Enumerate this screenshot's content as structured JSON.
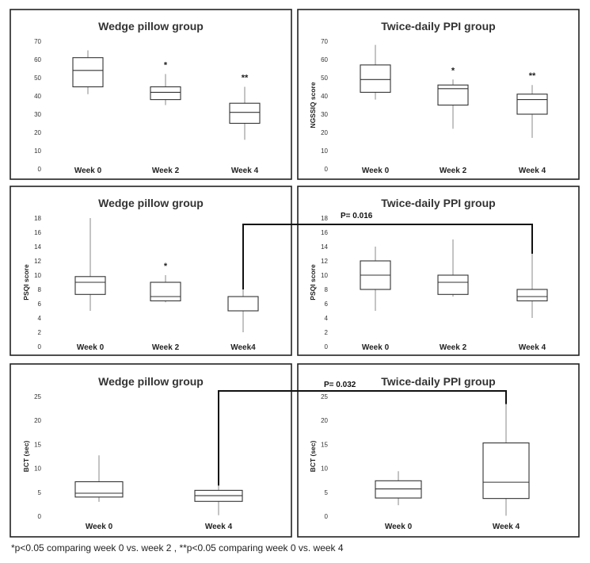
{
  "chart_data": [
    {
      "type": "box",
      "title": "Wedge pillow group",
      "ylabel": "",
      "yticks": [
        0,
        10,
        20,
        30,
        40,
        50,
        60,
        70
      ],
      "ylim": [
        0,
        70
      ],
      "categories": [
        "Week 0",
        "Week 2",
        "Week 4"
      ],
      "boxes": [
        {
          "min": 41,
          "q1": 45,
          "median": 54,
          "q3": 61,
          "max": 65,
          "annotation": ""
        },
        {
          "min": 35,
          "q1": 38,
          "median": 42,
          "q3": 45,
          "max": 52,
          "annotation": "*"
        },
        {
          "min": 16,
          "q1": 25,
          "median": 31,
          "q3": 36,
          "max": 45,
          "annotation": "**"
        }
      ]
    },
    {
      "type": "box",
      "title": "Twice-daily PPI group",
      "ylabel": "NGSSIQ score",
      "yticks": [
        0,
        10,
        20,
        30,
        40,
        50,
        60,
        70
      ],
      "ylim": [
        0,
        70
      ],
      "categories": [
        "Week 0",
        "Week 2",
        "Week 4"
      ],
      "boxes": [
        {
          "min": 38,
          "q1": 42,
          "median": 49,
          "q3": 57,
          "max": 68,
          "annotation": ""
        },
        {
          "min": 22,
          "q1": 35,
          "median": 44,
          "q3": 46,
          "max": 49,
          "annotation": "*"
        },
        {
          "min": 17,
          "q1": 30,
          "median": 38,
          "q3": 41,
          "max": 46,
          "annotation": "**"
        }
      ]
    },
    {
      "type": "box",
      "title": "Wedge pillow group",
      "ylabel": "PSQI score",
      "yticks": [
        0,
        2,
        4,
        6,
        8,
        10,
        12,
        14,
        16,
        18
      ],
      "ylim": [
        0,
        18
      ],
      "categories": [
        "Week 0",
        "Week 2",
        "Week4"
      ],
      "boxes": [
        {
          "min": 5,
          "q1": 7.3,
          "median": 9,
          "q3": 9.8,
          "max": 18,
          "annotation": ""
        },
        {
          "min": 6.2,
          "q1": 6.4,
          "median": 7,
          "q3": 9,
          "max": 10,
          "annotation": "*"
        },
        {
          "min": 2,
          "q1": 5,
          "median": 5,
          "q3": 7,
          "max": 8,
          "annotation": ""
        }
      ]
    },
    {
      "type": "box",
      "title": "Twice-daily PPI group",
      "ylabel": "PSQI score",
      "yticks": [
        0,
        2,
        4,
        6,
        8,
        10,
        12,
        14,
        16,
        18
      ],
      "ylim": [
        0,
        18
      ],
      "categories": [
        "Week 0",
        "Week 2",
        "Week 4"
      ],
      "boxes": [
        {
          "min": 5,
          "q1": 8,
          "median": 10,
          "q3": 12,
          "max": 14,
          "annotation": ""
        },
        {
          "min": 7,
          "q1": 7.3,
          "median": 9,
          "q3": 10,
          "max": 15,
          "annotation": ""
        },
        {
          "min": 4,
          "q1": 6.4,
          "median": 7,
          "q3": 8,
          "max": 13,
          "annotation": ""
        }
      ]
    },
    {
      "type": "box",
      "title": "Wedge pillow group",
      "ylabel": "BCT (sec)",
      "yticks": [
        0,
        5,
        10,
        15,
        20,
        25
      ],
      "ylim": [
        0,
        25
      ],
      "categories": [
        "Week 0",
        "Week 4"
      ],
      "boxes": [
        {
          "min": 3,
          "q1": 4,
          "median": 4.8,
          "q3": 7.2,
          "max": 12.7,
          "annotation": ""
        },
        {
          "min": 0.2,
          "q1": 3.1,
          "median": 4.3,
          "q3": 5.4,
          "max": 6.4,
          "annotation": ""
        }
      ]
    },
    {
      "type": "box",
      "title": "Twice-daily PPI group",
      "ylabel": "BCT (sec)",
      "yticks": [
        0,
        5,
        10,
        15,
        20,
        25
      ],
      "ylim": [
        0,
        25
      ],
      "categories": [
        "Week 0",
        "Week 4"
      ],
      "boxes": [
        {
          "min": 2.3,
          "q1": 3.8,
          "median": 5.7,
          "q3": 7.4,
          "max": 9.4,
          "annotation": ""
        },
        {
          "min": 0.1,
          "q1": 3.7,
          "median": 7.1,
          "q3": 15.3,
          "max": 23.4,
          "annotation": ""
        }
      ]
    }
  ],
  "comparisons": [
    {
      "label": "P= 0.016"
    },
    {
      "label": "P= 0.032"
    }
  ],
  "footnote": "*p<0.05 comparing week 0 vs. week 2 , **p<0.05 comparing week 0 vs. week 4"
}
